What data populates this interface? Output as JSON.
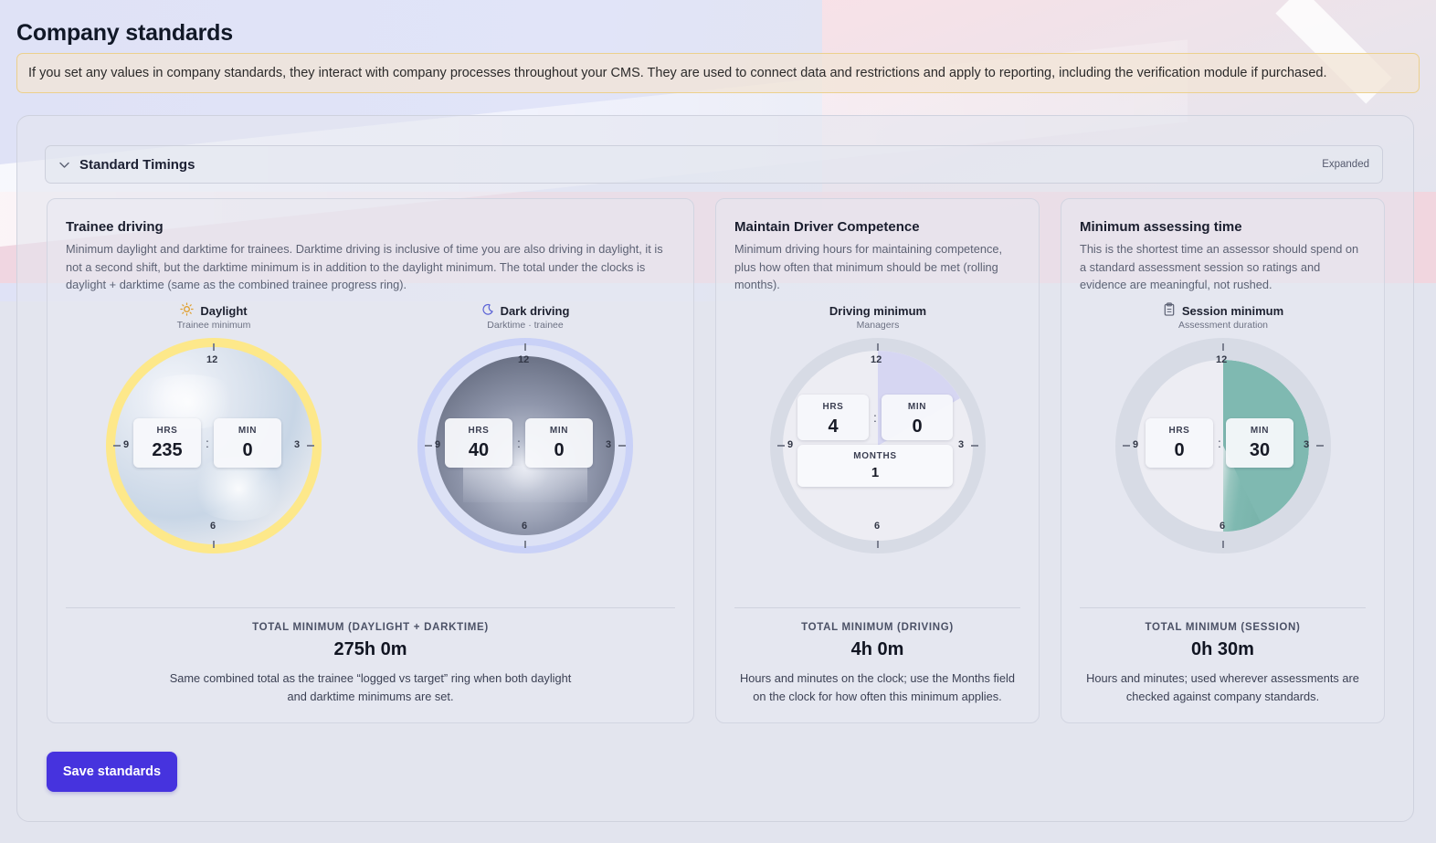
{
  "page": {
    "title": "Company standards",
    "notice": "If you set any values in company standards, they interact with company processes throughout your CMS. They are used to connect data and restrictions and apply to reporting, including the verification module if purchased."
  },
  "section": {
    "title": "Standard Timings",
    "state": "Expanded"
  },
  "cards": {
    "trainee": {
      "title": "Trainee driving",
      "desc_lines": [
        "Minimum daylight and darktime for trainees. Darktime driving is inclusive of time you are also driving in daylight, it is",
        "not a second shift, but the darktime minimum is in addition to the daylight minimum. The total under the clocks is",
        "daylight + darktime (same as the combined trainee progress ring)."
      ],
      "daylight": {
        "label": "Daylight",
        "sub": "Trainee minimum",
        "icon": "sun-icon",
        "hrs_label": "HRS",
        "hrs": "235",
        "min_label": "MIN",
        "min": "0",
        "colon": ":"
      },
      "dark": {
        "label": "Dark driving",
        "sub": "Darktime · trainee",
        "icon": "moon-icon",
        "hrs_label": "HRS",
        "hrs": "40",
        "min_label": "MIN",
        "min": "0",
        "colon": ":"
      },
      "total_label": "TOTAL MINIMUM (DAYLIGHT + DARKTIME)",
      "total_value": "275h 0m",
      "note_lines": [
        "Same combined total as the trainee “logged vs target” ring when both daylight",
        "and darktime minimums are set."
      ]
    },
    "competence": {
      "title": "Maintain Driver Competence",
      "desc_lines": [
        "Minimum driving hours for maintaining competence,",
        "plus how often that minimum should be met (rolling",
        "months)."
      ],
      "clock": {
        "label": "Driving minimum",
        "sub": "Managers",
        "hrs_label": "HRS",
        "hrs": "4",
        "min_label": "MIN",
        "min": "0",
        "months_label": "MONTHS",
        "months": "1",
        "colon": ":"
      },
      "total_label": "TOTAL MINIMUM (DRIVING)",
      "total_value": "4h 0m",
      "note_lines": [
        "Hours and minutes on the clock; use the Months field",
        "on the clock for how often this minimum applies."
      ]
    },
    "assessing": {
      "title": "Minimum assessing time",
      "desc_lines": [
        "This is the shortest time an assessor should spend on",
        "a standard assessment session so ratings and",
        "evidence are meaningful, not rushed."
      ],
      "clock": {
        "label": "Session minimum",
        "sub": "Assessment duration",
        "icon": "clipboard-icon",
        "hrs_label": "HRS",
        "hrs": "0",
        "min_label": "MIN",
        "min": "30",
        "colon": ":"
      },
      "total_label": "TOTAL MINIMUM (SESSION)",
      "total_value": "0h 30m",
      "note_lines": [
        "Hours and minutes; used wherever assessments are",
        "checked against company standards."
      ]
    }
  },
  "clock_numbers": {
    "n12": "12",
    "n3": "3",
    "n6": "6",
    "n9": "9"
  },
  "actions": {
    "save_label": "Save standards"
  },
  "colors": {
    "accent": "#4633de",
    "daylight_ring": "#fde88a",
    "dark_ring": "#c9d1f7",
    "competence_fill": "#d6d6f2",
    "session_fill": "#7fb9b1",
    "notice_border": "#ecd08c"
  }
}
